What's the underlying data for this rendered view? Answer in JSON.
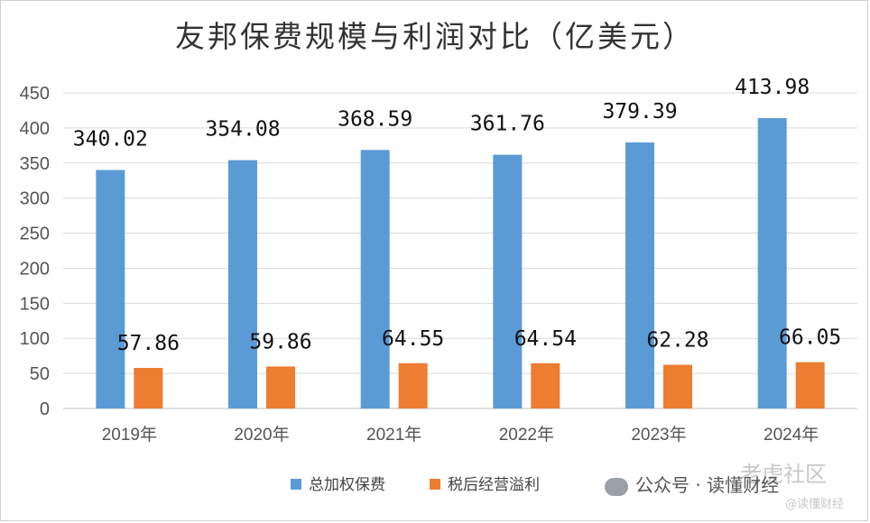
{
  "title": "友邦保费规模与利润对比（亿美元）",
  "watermark": {
    "text": "公众号 · 读懂财经",
    "overlay": "老虎社区",
    "overlay_small": "@读懂财经"
  },
  "colors": {
    "series1": "#5b9bd5",
    "series2": "#ed7d31",
    "grid": "#d9d9d9",
    "axis": "#bfbfbf"
  },
  "chart_data": {
    "type": "bar",
    "categories": [
      "2019年",
      "2020年",
      "2021年",
      "2022年",
      "2023年",
      "2024年"
    ],
    "series": [
      {
        "name": "总加权保费",
        "values": [
          340.02,
          354.08,
          368.59,
          361.76,
          379.39,
          413.98
        ],
        "labels": [
          "340.02",
          "354.08",
          "368.59",
          "361.76",
          "379.39",
          "413.98"
        ]
      },
      {
        "name": "税后经营溢利",
        "values": [
          57.86,
          59.86,
          64.55,
          64.54,
          62.28,
          66.05
        ],
        "labels": [
          "57.86",
          "59.86",
          "64.55",
          "64.54",
          "62.28",
          "66.05"
        ]
      }
    ],
    "yticks": [
      "0",
      "50",
      "100",
      "150",
      "200",
      "250",
      "300",
      "350",
      "400",
      "450"
    ],
    "ylim": [
      0,
      450
    ],
    "grid": true,
    "legend_position": "bottom"
  }
}
